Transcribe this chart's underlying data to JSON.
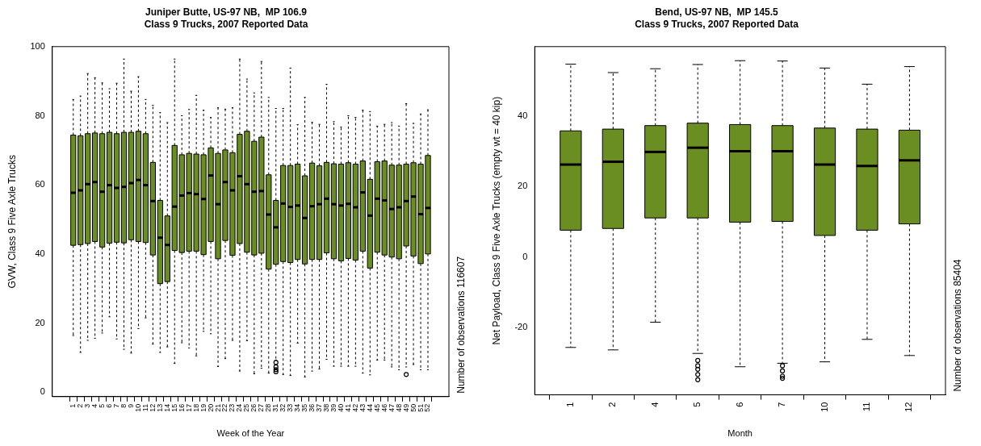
{
  "chart_data": [
    {
      "type": "box",
      "title": "Juniper Butte, US-97 NB,  MP 106.9",
      "subtitle": "Class 9 Trucks, 2007 Reported Data",
      "xlabel": "Week of the Year",
      "ylabel": "GVW, Class 9 Five Axle Trucks",
      "annotations": [
        "Number of observations 116607"
      ],
      "color": "#6b8e23",
      "ylim": [
        -1.3,
        100
      ],
      "yticks": [
        0,
        20,
        40,
        60,
        80,
        100
      ],
      "categories": [
        "1",
        "2",
        "3",
        "4",
        "5",
        "6",
        "7",
        "8",
        "9",
        "10",
        "11",
        "12",
        "13",
        "14",
        "15",
        "16",
        "17",
        "18",
        "19",
        "20",
        "21",
        "22",
        "23",
        "24",
        "25",
        "26",
        "27",
        "28",
        "31",
        "32",
        "33",
        "34",
        "35",
        "36",
        "37",
        "38",
        "39",
        "40",
        "41",
        "42",
        "43",
        "44",
        "45",
        "46",
        "47",
        "48",
        "49",
        "50",
        "51",
        "52"
      ],
      "boxes": [
        {
          "low": 16.4,
          "q1": 42.5,
          "median": 57.7,
          "q3": 74.4,
          "high": 84.7
        },
        {
          "low": 11.5,
          "q1": 42.7,
          "median": 58.4,
          "q3": 74.2,
          "high": 85.7
        },
        {
          "low": 15,
          "q1": 43,
          "median": 60.2,
          "q3": 74.8,
          "high": 92.2
        },
        {
          "low": 15.6,
          "q1": 43.6,
          "median": 60.8,
          "q3": 75,
          "high": 91
        },
        {
          "low": 17.1,
          "q1": 42,
          "median": 58,
          "q3": 74.8,
          "high": 89.5
        },
        {
          "low": 21.8,
          "q1": 43.1,
          "median": 59.9,
          "q3": 75.2,
          "high": 87.8
        },
        {
          "low": 15.4,
          "q1": 43.4,
          "median": 59.1,
          "q3": 74.8,
          "high": 89.4
        },
        {
          "low": 12.4,
          "q1": 43.2,
          "median": 59.4,
          "q3": 75.2,
          "high": 96.4
        },
        {
          "low": 11.3,
          "q1": 44.1,
          "median": 60.5,
          "q3": 75.2,
          "high": 87.1
        },
        {
          "low": 18.4,
          "q1": 43.6,
          "median": 61.4,
          "q3": 75.5,
          "high": 91.3
        },
        {
          "low": 21.5,
          "q1": 43.3,
          "median": 59.9,
          "q3": 74.8,
          "high": 84.7
        },
        {
          "low": 13.9,
          "q1": 39.7,
          "median": 55.3,
          "q3": 66.5,
          "high": 83
        },
        {
          "low": 11.5,
          "q1": 31.4,
          "median": 44.7,
          "q3": 55.5,
          "high": 80.9
        },
        {
          "low": 13.1,
          "q1": 32,
          "median": 42.6,
          "q3": 51,
          "high": 78
        },
        {
          "low": 8.3,
          "q1": 41,
          "median": 53.7,
          "q3": 71.4,
          "high": 96.4
        },
        {
          "low": 14.3,
          "q1": 40.4,
          "median": 56.9,
          "q3": 68.7,
          "high": 80
        },
        {
          "low": 12.8,
          "q1": 40.8,
          "median": 57.6,
          "q3": 69.1,
          "high": 81.8
        },
        {
          "low": 10.5,
          "q1": 40.8,
          "median": 57.3,
          "q3": 68.9,
          "high": 85.9
        },
        {
          "low": 17.6,
          "q1": 39.8,
          "median": 55.9,
          "q3": 68.7,
          "high": 81.6
        },
        {
          "low": 16.9,
          "q1": 43.6,
          "median": 62.7,
          "q3": 70.7,
          "high": 79.5
        },
        {
          "low": 7.4,
          "q1": 38.6,
          "median": 54.4,
          "q3": 69.1,
          "high": 82.3
        },
        {
          "low": 9.7,
          "q1": 43.9,
          "median": 60.8,
          "q3": 70.1,
          "high": 81.9
        },
        {
          "low": 15,
          "q1": 39.6,
          "median": 58.4,
          "q3": 69.3,
          "high": 82.3
        },
        {
          "low": 6.1,
          "q1": 43,
          "median": 62.5,
          "q3": 74.6,
          "high": 96.4
        },
        {
          "low": 14.9,
          "q1": 40.5,
          "median": 60.2,
          "q3": 75.5,
          "high": 90.6
        },
        {
          "low": 5.3,
          "q1": 39.7,
          "median": 58,
          "q3": 72.6,
          "high": 86.6
        },
        {
          "low": 6.9,
          "q1": 40.2,
          "median": 58.2,
          "q3": 73.8,
          "high": 95.7
        },
        {
          "low": 5.5,
          "q1": 35.6,
          "median": 51.4,
          "q3": 62.9,
          "high": 85.3
        },
        {
          "low": 9.3,
          "q1": 37,
          "median": 47.7,
          "q3": 55.5,
          "high": 82.1,
          "outliers": [
            8.6,
            7.3,
            6.5,
            5.9
          ]
        },
        {
          "low": 5.1,
          "q1": 37.8,
          "median": 54.6,
          "q3": 65.6,
          "high": 82.1
        },
        {
          "low": 4.8,
          "q1": 37.5,
          "median": 53.6,
          "q3": 65.6,
          "high": 93.8
        },
        {
          "low": 14.2,
          "q1": 38.4,
          "median": 54,
          "q3": 66,
          "high": 77.4
        },
        {
          "low": 4.4,
          "q1": 37.1,
          "median": 50.4,
          "q3": 62.6,
          "high": 85.3
        },
        {
          "low": 6.1,
          "q1": 38.4,
          "median": 53.8,
          "q3": 66.3,
          "high": 78.1
        },
        {
          "low": 6.7,
          "q1": 38.4,
          "median": 54.4,
          "q3": 65.5,
          "high": 77.5
        },
        {
          "low": 9.5,
          "q1": 40.3,
          "median": 56,
          "q3": 66.5,
          "high": 89.1
        },
        {
          "low": 7.5,
          "q1": 38.6,
          "median": 54.4,
          "q3": 66.1,
          "high": 78.3
        },
        {
          "low": 7.5,
          "q1": 38,
          "median": 54,
          "q3": 66,
          "high": 76.7
        },
        {
          "low": 7.5,
          "q1": 38.7,
          "median": 54.5,
          "q3": 66.4,
          "high": 80
        },
        {
          "low": 7.5,
          "q1": 38.2,
          "median": 53.5,
          "q3": 66,
          "high": 79.5
        },
        {
          "low": 5.5,
          "q1": 40.8,
          "median": 57.8,
          "q3": 66.9,
          "high": 81.6
        },
        {
          "low": 5,
          "q1": 35.9,
          "median": 51.1,
          "q3": 61.6,
          "high": 81.2
        },
        {
          "low": 9.3,
          "q1": 40.5,
          "median": 56,
          "q3": 66.7,
          "high": 77
        },
        {
          "low": 9.3,
          "q1": 39.7,
          "median": 55.5,
          "q3": 66.9,
          "high": 77.5
        },
        {
          "low": 7.3,
          "q1": 39.1,
          "median": 53,
          "q3": 65.7,
          "high": 78
        },
        {
          "low": 6.5,
          "q1": 38.6,
          "median": 53.5,
          "q3": 65.7,
          "high": 77
        },
        {
          "low": 7.3,
          "q1": 42.3,
          "median": 55.3,
          "q3": 66,
          "high": 83.5,
          "outliers": [
            5.1
          ]
        },
        {
          "low": 8,
          "q1": 39.4,
          "median": 56.6,
          "q3": 66.4,
          "high": 77.8
        },
        {
          "low": 6.5,
          "q1": 37.2,
          "median": 51.5,
          "q3": 66,
          "high": 80.5
        },
        {
          "low": 6.5,
          "q1": 40,
          "median": 53.3,
          "q3": 68.5,
          "high": 81.7
        }
      ]
    },
    {
      "type": "box",
      "title": "Bend, US-97 NB,  MP 145.5",
      "subtitle": "Class 9 Trucks, 2007 Reported Data",
      "xlabel": "Month",
      "ylabel": "Net Payload, Class 9 Five Axle Trucks (empty wt = 40 kip)",
      "annotations": [
        "Number of observations 85404"
      ],
      "color": "#6b8e23",
      "ylim": [
        -39.3,
        59.9
      ],
      "yticks": [
        -20,
        0,
        20,
        40
      ],
      "categories": [
        "1",
        "2",
        "4",
        "5",
        "6",
        "7",
        "10",
        "11",
        "12"
      ],
      "boxes": [
        {
          "low": -25.8,
          "q1": 7.6,
          "median": 26.3,
          "q3": 35.9,
          "high": 54.9
        },
        {
          "low": -26.5,
          "q1": 8.1,
          "median": 27.1,
          "q3": 36.4,
          "high": 52.5
        },
        {
          "low": -18.6,
          "q1": 11.1,
          "median": 29.9,
          "q3": 37.4,
          "high": 53.6
        },
        {
          "low": -27.5,
          "q1": 11.1,
          "median": 31.1,
          "q3": 38.1,
          "high": 54.8,
          "outliers": [
            -29.5,
            -31,
            -32,
            -33.5,
            -35
          ]
        },
        {
          "low": -31.3,
          "q1": 9.9,
          "median": 30.1,
          "q3": 37.7,
          "high": 55.9
        },
        {
          "low": -30.3,
          "q1": 10.1,
          "median": 30.1,
          "q3": 37.4,
          "high": 55.8,
          "outliers": [
            -31,
            -32.5,
            -34,
            -34.6
          ]
        },
        {
          "low": -29.9,
          "q1": 6.1,
          "median": 26.3,
          "q3": 36.7,
          "high": 53.8
        },
        {
          "low": -23.5,
          "q1": 7.6,
          "median": 25.9,
          "q3": 36.4,
          "high": 49.2
        },
        {
          "low": -28.1,
          "q1": 9.4,
          "median": 27.5,
          "q3": 36.1,
          "high": 54.2
        }
      ]
    }
  ]
}
